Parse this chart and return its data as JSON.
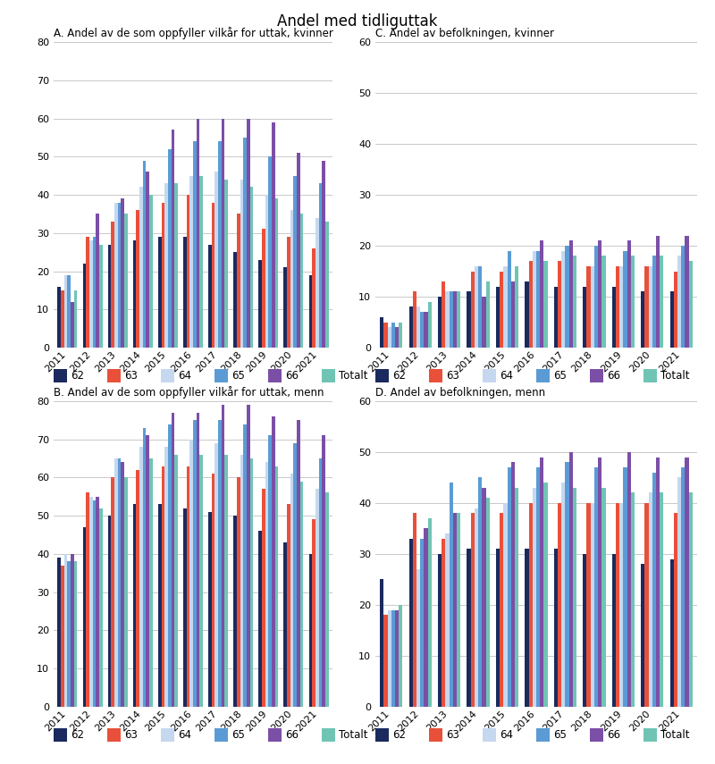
{
  "title": "Andel med tidliguttak",
  "years": [
    2011,
    2012,
    2013,
    2014,
    2015,
    2016,
    2017,
    2018,
    2019,
    2020,
    2021
  ],
  "colors": {
    "62": "#1a2a5e",
    "63": "#e8503a",
    "64": "#c5d8ef",
    "65": "#5b9bd5",
    "66": "#7b4fa6",
    "Totalt": "#70c4b4"
  },
  "legend_labels": [
    "62",
    "63",
    "64",
    "65",
    "66",
    "Totalt"
  ],
  "panels": {
    "A": {
      "title": "A. Andel av de som oppfyller vilkår for uttak, kvinner",
      "ylim": [
        0,
        80
      ],
      "yticks": [
        0,
        10,
        20,
        30,
        40,
        50,
        60,
        70,
        80
      ],
      "data": {
        "62": [
          16,
          22,
          27,
          28,
          29,
          29,
          27,
          25,
          23,
          21,
          19
        ],
        "63": [
          15,
          29,
          33,
          36,
          38,
          40,
          38,
          35,
          31,
          29,
          26
        ],
        "64": [
          19,
          28,
          38,
          42,
          43,
          45,
          46,
          44,
          40,
          36,
          34
        ],
        "65": [
          19,
          29,
          38,
          49,
          52,
          54,
          54,
          55,
          50,
          45,
          43
        ],
        "66": [
          12,
          35,
          39,
          46,
          57,
          60,
          60,
          60,
          59,
          51,
          49
        ],
        "Totalt": [
          15,
          27,
          35,
          40,
          43,
          45,
          44,
          42,
          39,
          35,
          33
        ]
      }
    },
    "B": {
      "title": "B. Andel av de som oppfyller vilkår for uttak, menn",
      "ylim": [
        0,
        80
      ],
      "yticks": [
        0,
        10,
        20,
        30,
        40,
        50,
        60,
        70,
        80
      ],
      "data": {
        "62": [
          39,
          47,
          50,
          53,
          53,
          52,
          51,
          50,
          46,
          43,
          40
        ],
        "63": [
          37,
          56,
          60,
          62,
          63,
          63,
          61,
          60,
          57,
          53,
          49
        ],
        "64": [
          40,
          55,
          65,
          68,
          68,
          70,
          69,
          66,
          64,
          61,
          57
        ],
        "65": [
          38,
          54,
          65,
          73,
          74,
          75,
          75,
          74,
          71,
          69,
          65
        ],
        "66": [
          40,
          55,
          64,
          71,
          77,
          77,
          79,
          79,
          76,
          75,
          71
        ],
        "Totalt": [
          38,
          52,
          60,
          65,
          66,
          66,
          66,
          65,
          63,
          59,
          56
        ]
      }
    },
    "C": {
      "title": "C. Andel av befolkningen, kvinner",
      "ylim": [
        0,
        60
      ],
      "yticks": [
        0,
        10,
        20,
        30,
        40,
        50,
        60
      ],
      "data": {
        "62": [
          6,
          8,
          10,
          11,
          12,
          13,
          12,
          12,
          12,
          11,
          11
        ],
        "63": [
          5,
          11,
          13,
          15,
          15,
          17,
          17,
          16,
          16,
          16,
          15
        ],
        "64": [
          4,
          8,
          11,
          16,
          16,
          19,
          19,
          16,
          16,
          16,
          18
        ],
        "65": [
          5,
          7,
          11,
          16,
          19,
          19,
          20,
          20,
          19,
          18,
          20
        ],
        "66": [
          4,
          7,
          11,
          10,
          13,
          21,
          21,
          21,
          21,
          22,
          22
        ],
        "Totalt": [
          5,
          9,
          11,
          13,
          16,
          17,
          18,
          18,
          18,
          18,
          17
        ]
      }
    },
    "D": {
      "title": "D. Andel av befolkningen, menn",
      "ylim": [
        0,
        60
      ],
      "yticks": [
        0,
        10,
        20,
        30,
        40,
        50,
        60
      ],
      "data": {
        "62": [
          25,
          33,
          30,
          31,
          31,
          31,
          31,
          30,
          30,
          28,
          29
        ],
        "63": [
          18,
          38,
          33,
          38,
          38,
          40,
          40,
          40,
          40,
          40,
          38
        ],
        "64": [
          19,
          27,
          34,
          39,
          40,
          43,
          44,
          40,
          40,
          42,
          45
        ],
        "65": [
          19,
          33,
          44,
          45,
          47,
          47,
          48,
          47,
          47,
          46,
          47
        ],
        "66": [
          19,
          35,
          38,
          43,
          48,
          49,
          50,
          49,
          50,
          49,
          49
        ],
        "Totalt": [
          20,
          37,
          38,
          41,
          43,
          44,
          43,
          43,
          42,
          42,
          42
        ]
      }
    }
  }
}
